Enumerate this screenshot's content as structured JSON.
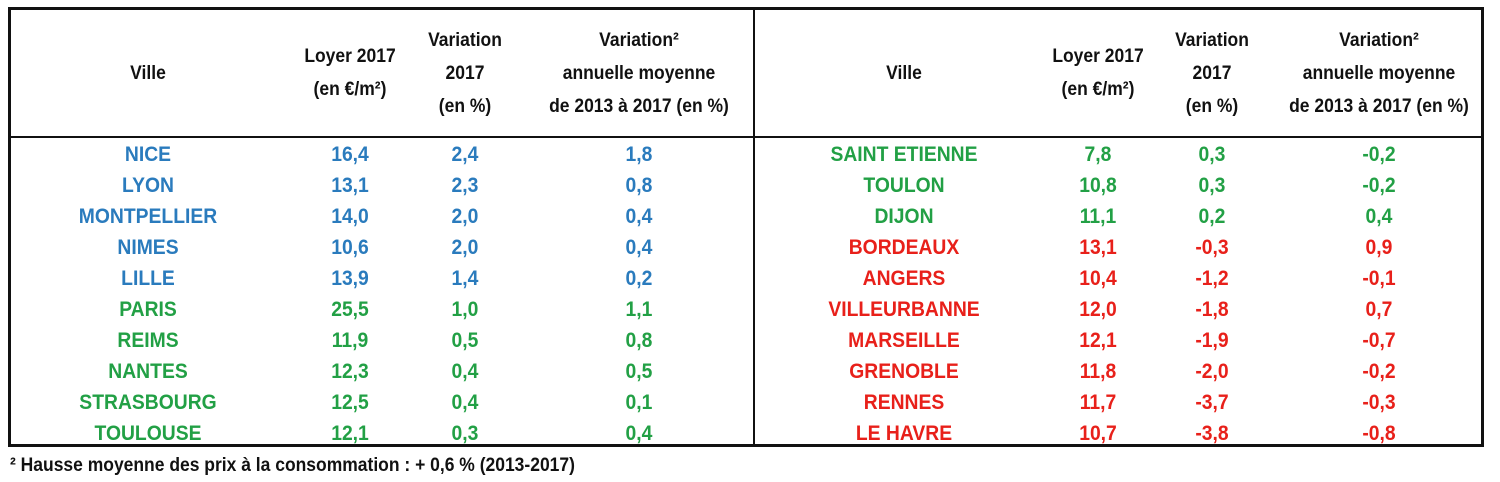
{
  "colors": {
    "blue": "#2a7bbd",
    "green": "#22a045",
    "red": "#e8201a",
    "text": "#111111"
  },
  "headers": [
    [
      "Ville"
    ],
    [
      "Loyer 2017",
      "(en €/m²)"
    ],
    [
      "Variation",
      "2017",
      "(en %)"
    ],
    [
      "Variation²",
      "annuelle moyenne",
      "de 2013 à 2017 (en %)"
    ],
    [
      "Ville"
    ],
    [
      "Loyer 2017",
      "(en €/m²)"
    ],
    [
      "Variation",
      "2017",
      "(en %)"
    ],
    [
      "Variation²",
      "annuelle moyenne",
      "de 2013 à 2017 (en %)"
    ]
  ],
  "left_rows": [
    {
      "ville": "NICE",
      "loyer": "16,4",
      "variation": "2,4",
      "variation_moyenne": "1,8",
      "color": "blue"
    },
    {
      "ville": "LYON",
      "loyer": "13,1",
      "variation": "2,3",
      "variation_moyenne": "0,8",
      "color": "blue"
    },
    {
      "ville": "MONTPELLIER",
      "loyer": "14,0",
      "variation": "2,0",
      "variation_moyenne": "0,4",
      "color": "blue"
    },
    {
      "ville": "NIMES",
      "loyer": "10,6",
      "variation": "2,0",
      "variation_moyenne": "0,4",
      "color": "blue"
    },
    {
      "ville": "LILLE",
      "loyer": "13,9",
      "variation": "1,4",
      "variation_moyenne": "0,2",
      "color": "blue"
    },
    {
      "ville": "PARIS",
      "loyer": "25,5",
      "variation": "1,0",
      "variation_moyenne": "1,1",
      "color": "green"
    },
    {
      "ville": "REIMS",
      "loyer": "11,9",
      "variation": "0,5",
      "variation_moyenne": "0,8",
      "color": "green"
    },
    {
      "ville": "NANTES",
      "loyer": "12,3",
      "variation": "0,4",
      "variation_moyenne": "0,5",
      "color": "green"
    },
    {
      "ville": "STRASBOURG",
      "loyer": "12,5",
      "variation": "0,4",
      "variation_moyenne": "0,1",
      "color": "green"
    },
    {
      "ville": "TOULOUSE",
      "loyer": "12,1",
      "variation": "0,3",
      "variation_moyenne": "0,4",
      "color": "green"
    }
  ],
  "right_rows": [
    {
      "ville": "SAINT ETIENNE",
      "loyer": "7,8",
      "variation": "0,3",
      "variation_moyenne": "-0,2",
      "color": "green"
    },
    {
      "ville": "TOULON",
      "loyer": "10,8",
      "variation": "0,3",
      "variation_moyenne": "-0,2",
      "color": "green"
    },
    {
      "ville": "DIJON",
      "loyer": "11,1",
      "variation": "0,2",
      "variation_moyenne": "0,4",
      "color": "green"
    },
    {
      "ville": "BORDEAUX",
      "loyer": "13,1",
      "variation": "-0,3",
      "variation_moyenne": "0,9",
      "color": "red"
    },
    {
      "ville": "ANGERS",
      "loyer": "10,4",
      "variation": "-1,2",
      "variation_moyenne": "-0,1",
      "color": "red"
    },
    {
      "ville": "VILLEURBANNE",
      "loyer": "12,0",
      "variation": "-1,8",
      "variation_moyenne": "0,7",
      "color": "red"
    },
    {
      "ville": "MARSEILLE",
      "loyer": "12,1",
      "variation": "-1,9",
      "variation_moyenne": "-0,7",
      "color": "red"
    },
    {
      "ville": "GRENOBLE",
      "loyer": "11,8",
      "variation": "-2,0",
      "variation_moyenne": "-0,2",
      "color": "red"
    },
    {
      "ville": "RENNES",
      "loyer": "11,7",
      "variation": "-3,7",
      "variation_moyenne": "-0,3",
      "color": "red"
    },
    {
      "ville": "LE HAVRE",
      "loyer": "10,7",
      "variation": "-3,8",
      "variation_moyenne": "-0,8",
      "color": "red"
    }
  ],
  "footnote": "² Hausse moyenne des prix à la consommation :  + 0,6 % (2013-2017)"
}
